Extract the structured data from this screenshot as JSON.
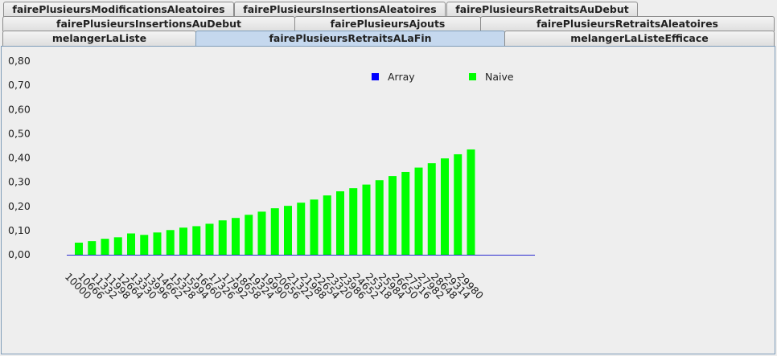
{
  "tabs": {
    "row1": [
      {
        "label": "fairePlusieursModificationsAleatoires"
      },
      {
        "label": "fairePlusieursInsertionsAleatoires"
      },
      {
        "label": "fairePlusieursRetraitsAuDebut"
      }
    ],
    "row2": [
      {
        "label": "fairePlusieursInsertionsAuDebut"
      },
      {
        "label": "fairePlusieursAjouts"
      },
      {
        "label": "fairePlusieursRetraitsAleatoires"
      }
    ],
    "row3": [
      {
        "label": "melangerLaListe"
      },
      {
        "label": "fairePlusieursRetraitsALaFin",
        "selected": true
      },
      {
        "label": "melangerLaListeEfficace"
      }
    ]
  },
  "chart_data": {
    "type": "bar",
    "title": "",
    "xlabel": "",
    "ylabel": "",
    "ylim": [
      0,
      0.8
    ],
    "yticks": [
      "0,00",
      "0,10",
      "0,20",
      "0,30",
      "0,40",
      "0,50",
      "0,60",
      "0,70",
      "0,80"
    ],
    "legend_position": "top-right",
    "categories": [
      "10000",
      "10666",
      "11332",
      "11998",
      "12664",
      "13330",
      "13996",
      "14662",
      "15328",
      "15994",
      "16660",
      "17326",
      "17992",
      "18658",
      "19324",
      "19990",
      "20656",
      "21322",
      "21988",
      "22654",
      "23320",
      "23986",
      "24652",
      "25318",
      "25984",
      "26650",
      "27316",
      "27982",
      "28648",
      "29314",
      "29980"
    ],
    "series": [
      {
        "name": "Array",
        "color": "#0000ff",
        "values": [
          0,
          0,
          0,
          0,
          0,
          0,
          0,
          0,
          0,
          0,
          0,
          0,
          0,
          0,
          0,
          0,
          0,
          0,
          0,
          0,
          0,
          0,
          0,
          0,
          0,
          0,
          0,
          0,
          0,
          0,
          0
        ]
      },
      {
        "name": "Naive",
        "color": "#00ff00",
        "values": [
          0.05,
          0.056,
          0.066,
          0.072,
          0.088,
          0.082,
          0.092,
          0.102,
          0.112,
          0.118,
          0.128,
          0.142,
          0.152,
          0.165,
          0.178,
          0.192,
          0.202,
          0.215,
          0.228,
          0.245,
          0.262,
          0.275,
          0.29,
          0.308,
          0.325,
          0.342,
          0.36,
          0.378,
          0.398,
          0.415,
          0.435
        ]
      }
    ]
  }
}
